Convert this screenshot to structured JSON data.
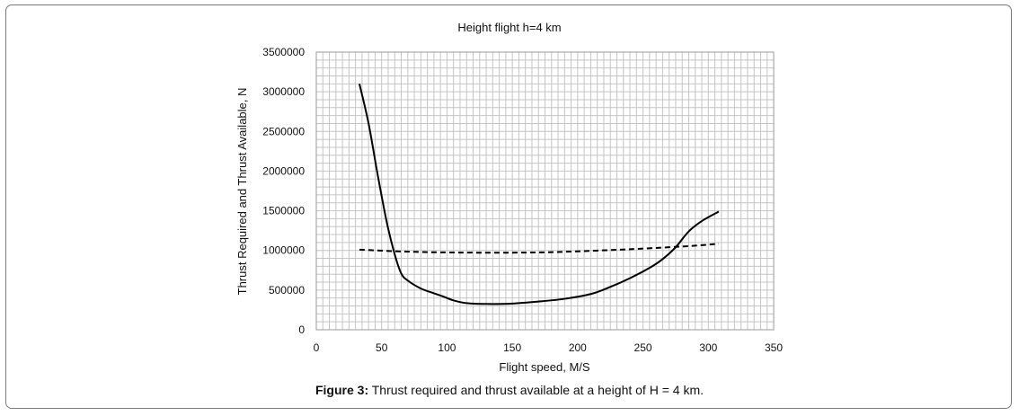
{
  "chart_data": {
    "type": "line",
    "title": "Height flight h=4 km",
    "xlabel": "Flight speed, M/S",
    "ylabel": "Thrust Required and Thrust Available, N",
    "xlim": [
      0,
      350
    ],
    "ylim": [
      0,
      3500000
    ],
    "x_ticks": [
      0,
      50,
      100,
      150,
      200,
      250,
      300,
      350
    ],
    "y_ticks": [
      0,
      500000,
      1000000,
      1500000,
      2000000,
      2500000,
      3000000,
      3500000
    ],
    "x_tick_labels": [
      "0",
      "50",
      "100",
      "150",
      "200",
      "250",
      "300",
      "350"
    ],
    "y_tick_labels": [
      "0",
      "500000",
      "1000000",
      "1500000",
      "2000000",
      "2500000",
      "3000000",
      "3500000"
    ],
    "grid": true,
    "legend": "none",
    "series": [
      {
        "style": "solid",
        "color": "#000000",
        "x": [
          33,
          40,
          47,
          54,
          60,
          65,
          70,
          80,
          90,
          97,
          105,
          115,
          130,
          150,
          170,
          190,
          210,
          225,
          240,
          255,
          265,
          275,
          285,
          295,
          308
        ],
        "y": [
          3100000,
          2600000,
          1950000,
          1350000,
          950000,
          710000,
          620000,
          520000,
          460000,
          420000,
          370000,
          335000,
          325000,
          330000,
          355000,
          390000,
          450000,
          540000,
          650000,
          780000,
          890000,
          1040000,
          1240000,
          1370000,
          1490000
        ]
      },
      {
        "style": "dashed",
        "color": "#000000",
        "x": [
          33,
          60,
          80,
          100,
          120,
          150,
          180,
          210,
          240,
          270,
          290,
          308
        ],
        "y": [
          1010000,
          990000,
          980000,
          975000,
          972000,
          972000,
          978000,
          995000,
          1015000,
          1040000,
          1060000,
          1085000
        ]
      }
    ]
  },
  "caption": {
    "label": "Figure 3:",
    "text": " Thrust required and thrust available at a height of H = 4 km."
  }
}
